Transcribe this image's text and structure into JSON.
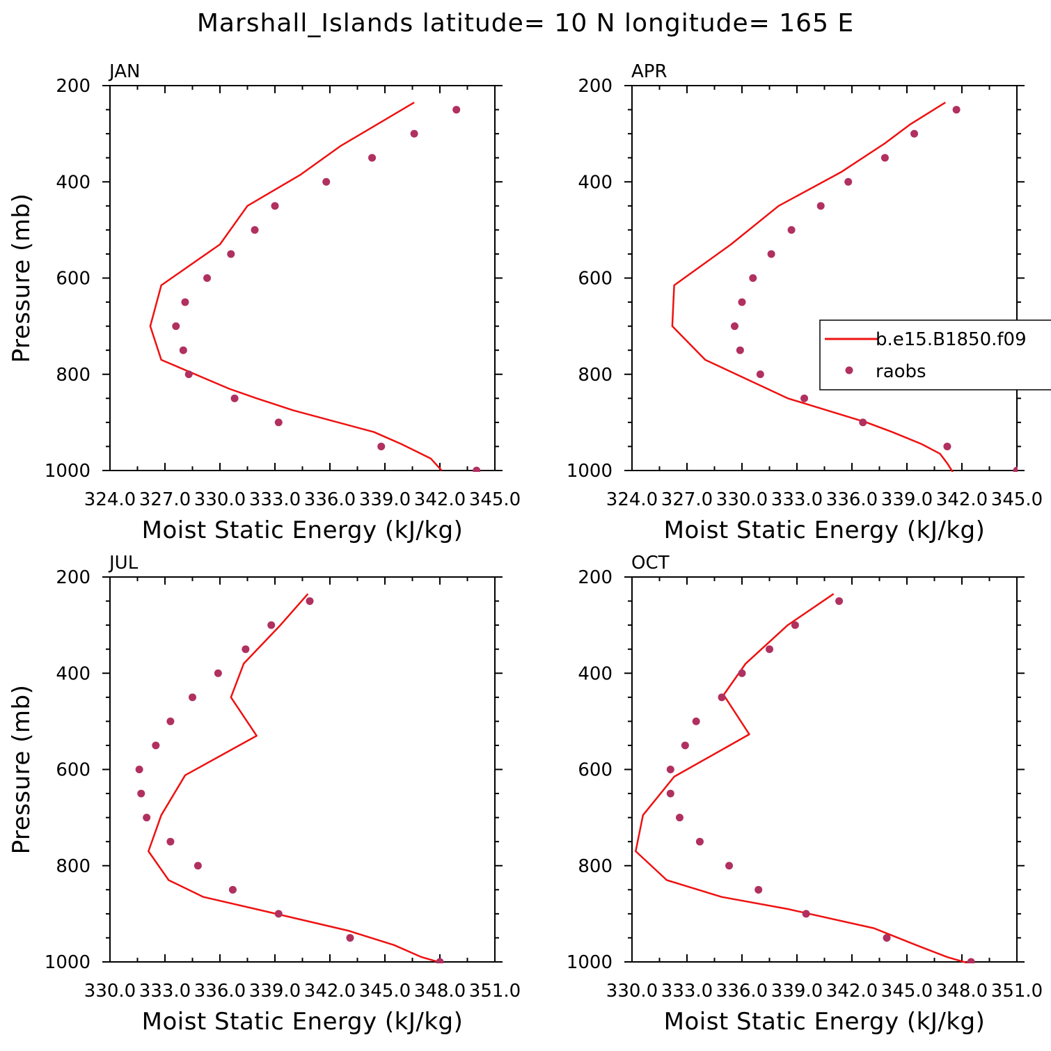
{
  "title": "Marshall_Islands  latitude= 10 N longitude= 165 E",
  "colors": {
    "model": "#ee1111",
    "obs": "#b03060"
  },
  "legend": {
    "model_label": "b.e15.B1850.f09",
    "obs_label": "raobs"
  },
  "chart_data": [
    {
      "type": "line",
      "panel_label": "JAN",
      "xlabel": "Moist Static Energy (kJ/kg)",
      "ylabel": "Pressure (mb)",
      "xlim": [
        324.0,
        345.0
      ],
      "ylim": [
        1000,
        200
      ],
      "xticks": [
        324.0,
        327.0,
        330.0,
        333.0,
        336.0,
        339.0,
        342.0,
        345.0
      ],
      "xtick_labels": [
        "324.0",
        "327.0",
        "330.0",
        "333.0",
        "336.0",
        "339.0",
        "342.0",
        "345.0"
      ],
      "yticks": [
        200,
        400,
        600,
        800,
        1000
      ],
      "ytick_labels": [
        "200",
        "400",
        "600",
        "800",
        "1000"
      ],
      "series": [
        {
          "name": "b.e15.B1850.f09",
          "kind": "line",
          "points": [
            [
              340.6,
              235
            ],
            [
              338.6,
              280
            ],
            [
              336.6,
              325
            ],
            [
              334.4,
              385
            ],
            [
              331.5,
              450
            ],
            [
              330.0,
              530
            ],
            [
              326.8,
              615
            ],
            [
              326.2,
              700
            ],
            [
              326.8,
              770
            ],
            [
              330.5,
              830
            ],
            [
              332.0,
              850
            ],
            [
              334.0,
              875
            ],
            [
              338.4,
              920
            ],
            [
              339.9,
              945
            ],
            [
              341.5,
              975
            ],
            [
              342.1,
              1000
            ]
          ]
        },
        {
          "name": "raobs",
          "kind": "scatter",
          "points": [
            [
              342.9,
              250
            ],
            [
              340.6,
              300
            ],
            [
              338.3,
              350
            ],
            [
              335.8,
              400
            ],
            [
              333.0,
              450
            ],
            [
              331.9,
              500
            ],
            [
              330.6,
              550
            ],
            [
              329.3,
              600
            ],
            [
              328.1,
              650
            ],
            [
              327.6,
              700
            ],
            [
              328.0,
              750
            ],
            [
              328.3,
              800
            ],
            [
              330.8,
              850
            ],
            [
              333.2,
              900
            ],
            [
              338.8,
              950
            ],
            [
              344.0,
              1000
            ]
          ]
        }
      ]
    },
    {
      "type": "line",
      "panel_label": "APR",
      "xlabel": "Moist Static Energy (kJ/kg)",
      "ylabel": "",
      "xlim": [
        324.0,
        345.0
      ],
      "ylim": [
        1000,
        200
      ],
      "xticks": [
        324.0,
        327.0,
        330.0,
        333.0,
        336.0,
        339.0,
        342.0,
        345.0
      ],
      "xtick_labels": [
        "324.0",
        "327.0",
        "330.0",
        "333.0",
        "336.0",
        "339.0",
        "342.0",
        "345.0"
      ],
      "yticks": [
        200,
        400,
        600,
        800,
        1000
      ],
      "ytick_labels": [
        "200",
        "400",
        "600",
        "800",
        "1000"
      ],
      "series": [
        {
          "name": "b.e15.B1850.f09",
          "kind": "line",
          "points": [
            [
              341.1,
              235
            ],
            [
              339.2,
              280
            ],
            [
              337.8,
              320
            ],
            [
              335.4,
              380
            ],
            [
              332.0,
              450
            ],
            [
              329.4,
              530
            ],
            [
              326.3,
              615
            ],
            [
              326.2,
              700
            ],
            [
              328.0,
              770
            ],
            [
              332.5,
              850
            ],
            [
              336.8,
              900
            ],
            [
              338.2,
              920
            ],
            [
              339.8,
              945
            ],
            [
              340.8,
              965
            ],
            [
              341.2,
              985
            ],
            [
              341.5,
              1003
            ]
          ]
        },
        {
          "name": "raobs",
          "kind": "scatter",
          "points": [
            [
              341.7,
              250
            ],
            [
              339.4,
              300
            ],
            [
              337.8,
              350
            ],
            [
              335.8,
              400
            ],
            [
              334.3,
              450
            ],
            [
              332.7,
              500
            ],
            [
              331.6,
              550
            ],
            [
              330.6,
              600
            ],
            [
              330.0,
              650
            ],
            [
              329.6,
              700
            ],
            [
              329.9,
              750
            ],
            [
              331.0,
              800
            ],
            [
              333.4,
              850
            ],
            [
              336.6,
              900
            ],
            [
              341.2,
              950
            ],
            [
              345.0,
              1000
            ]
          ]
        }
      ]
    },
    {
      "type": "line",
      "panel_label": "JUL",
      "xlabel": "Moist Static Energy (kJ/kg)",
      "ylabel": "Pressure (mb)",
      "xlim": [
        330.0,
        351.0
      ],
      "ylim": [
        1000,
        200
      ],
      "xticks": [
        330.0,
        333.0,
        336.0,
        339.0,
        342.0,
        345.0,
        348.0,
        351.0
      ],
      "xtick_labels": [
        "330.0",
        "333.0",
        "336.0",
        "339.0",
        "342.0",
        "345.0",
        "348.0",
        "351.0"
      ],
      "yticks": [
        200,
        400,
        600,
        800,
        1000
      ],
      "ytick_labels": [
        "200",
        "400",
        "600",
        "800",
        "1000"
      ],
      "series": [
        {
          "name": "b.e15.B1850.f09",
          "kind": "line",
          "points": [
            [
              340.8,
              235
            ],
            [
              339.3,
              300
            ],
            [
              337.3,
              380
            ],
            [
              336.6,
              450
            ],
            [
              338.0,
              530
            ],
            [
              334.1,
              612
            ],
            [
              332.8,
              695
            ],
            [
              332.1,
              770
            ],
            [
              333.2,
              830
            ],
            [
              335.1,
              865
            ],
            [
              338.5,
              895
            ],
            [
              343.0,
              935
            ],
            [
              345.5,
              965
            ],
            [
              347.0,
              990
            ],
            [
              348.1,
              1002
            ]
          ]
        },
        {
          "name": "raobs",
          "kind": "scatter",
          "points": [
            [
              340.9,
              250
            ],
            [
              338.8,
              300
            ],
            [
              337.4,
              350
            ],
            [
              335.9,
              400
            ],
            [
              334.5,
              450
            ],
            [
              333.3,
              500
            ],
            [
              332.5,
              550
            ],
            [
              331.6,
              600
            ],
            [
              331.7,
              650
            ],
            [
              332.0,
              700
            ],
            [
              333.3,
              750
            ],
            [
              334.8,
              800
            ],
            [
              336.7,
              850
            ],
            [
              339.2,
              900
            ],
            [
              343.1,
              950
            ],
            [
              348.0,
              1000
            ]
          ]
        }
      ]
    },
    {
      "type": "line",
      "panel_label": "OCT",
      "xlabel": "Moist Static Energy (kJ/kg)",
      "ylabel": "",
      "xlim": [
        330.0,
        351.0
      ],
      "ylim": [
        1000,
        200
      ],
      "xticks": [
        330.0,
        333.0,
        336.0,
        339.0,
        342.0,
        345.0,
        348.0,
        351.0
      ],
      "xtick_labels": [
        "330.0",
        "333.0",
        "336.0",
        "339.0",
        "342.0",
        "345.0",
        "348.0",
        "351.0"
      ],
      "yticks": [
        200,
        400,
        600,
        800,
        1000
      ],
      "ytick_labels": [
        "200",
        "400",
        "600",
        "800",
        "1000"
      ],
      "series": [
        {
          "name": "b.e15.B1850.f09",
          "kind": "line",
          "points": [
            [
              341.0,
              235
            ],
            [
              338.5,
              300
            ],
            [
              336.2,
              380
            ],
            [
              335.0,
              445
            ],
            [
              336.4,
              527
            ],
            [
              332.3,
              615
            ],
            [
              330.6,
              695
            ],
            [
              330.2,
              770
            ],
            [
              331.9,
              830
            ],
            [
              334.9,
              865
            ],
            [
              338.5,
              890
            ],
            [
              343.2,
              930
            ],
            [
              345.5,
              965
            ],
            [
              347.2,
              990
            ],
            [
              348.3,
              1002
            ]
          ]
        },
        {
          "name": "raobs",
          "kind": "scatter",
          "points": [
            [
              341.3,
              250
            ],
            [
              338.9,
              300
            ],
            [
              337.5,
              350
            ],
            [
              336.0,
              400
            ],
            [
              334.9,
              450
            ],
            [
              333.5,
              500
            ],
            [
              332.9,
              550
            ],
            [
              332.1,
              600
            ],
            [
              332.1,
              650
            ],
            [
              332.6,
              700
            ],
            [
              333.7,
              750
            ],
            [
              335.3,
              800
            ],
            [
              336.9,
              850
            ],
            [
              339.5,
              900
            ],
            [
              343.9,
              950
            ],
            [
              348.5,
              1000
            ]
          ]
        }
      ]
    }
  ]
}
